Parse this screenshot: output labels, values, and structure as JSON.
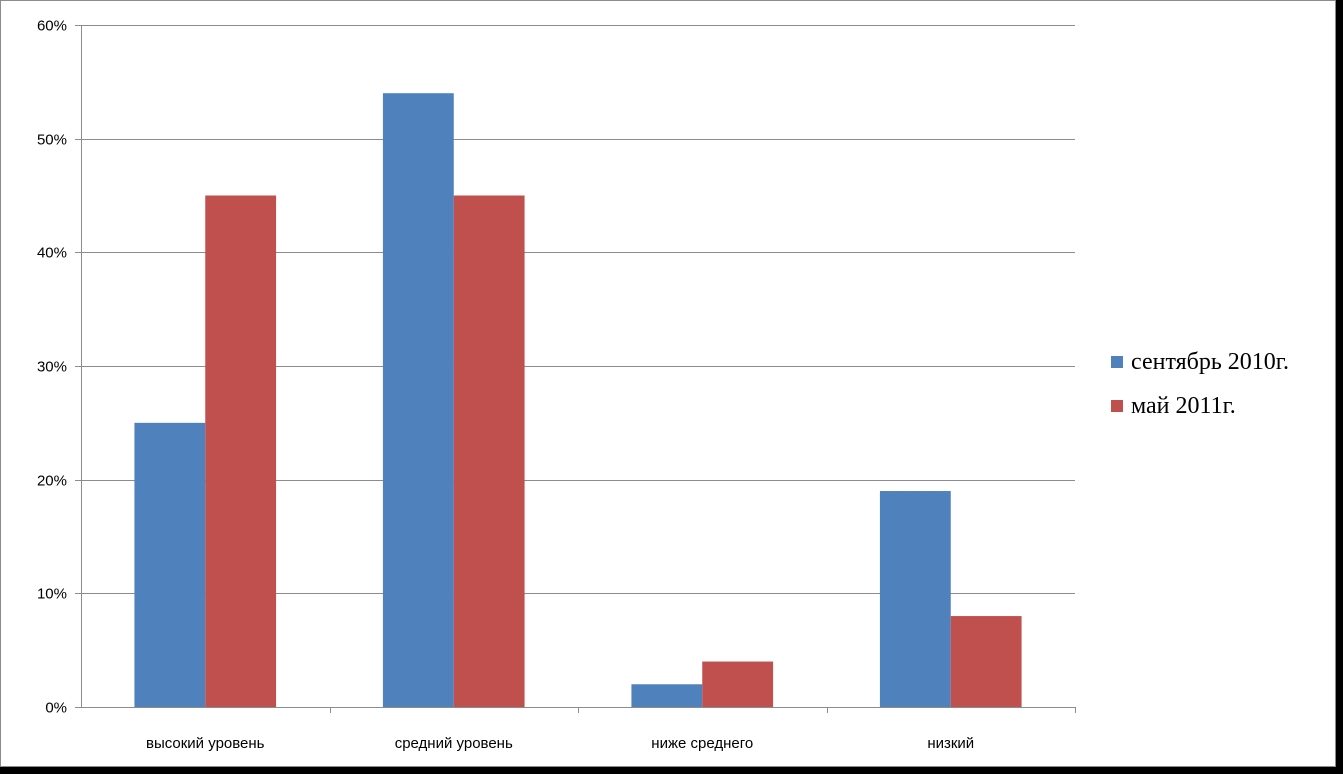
{
  "chart_data": {
    "type": "bar",
    "title": "",
    "xlabel": "",
    "ylabel": "",
    "categories": [
      "высокий уровень",
      "средний уровень",
      "ниже среднего",
      "низкий"
    ],
    "series": [
      {
        "name": "сентябрь 2010г.",
        "color": "#4f81bd",
        "values": [
          25,
          54,
          2,
          19
        ]
      },
      {
        "name": "май 2011г.",
        "color": "#c0504d",
        "values": [
          45,
          45,
          4,
          8
        ]
      }
    ],
    "ylim": [
      0,
      60
    ],
    "yticks": [
      0,
      10,
      20,
      30,
      40,
      50,
      60
    ],
    "ytick_labels": [
      "0%",
      "10%",
      "20%",
      "30%",
      "40%",
      "50%",
      "60%"
    ],
    "grid": true,
    "legend_position": "right"
  }
}
